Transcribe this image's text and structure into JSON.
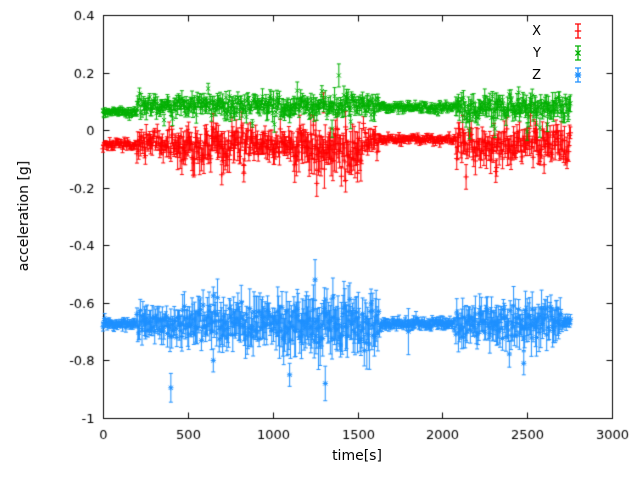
{
  "chart_data": {
    "type": "scatter",
    "style": "points-with-yerrorbars",
    "title": "",
    "xlabel": "time[s]",
    "ylabel": "acceleration [g]",
    "xlim": [
      0,
      3000
    ],
    "ylim": [
      -1,
      0.4
    ],
    "xticks": [
      0,
      500,
      1000,
      1500,
      2000,
      2500,
      3000
    ],
    "yticks": [
      -1,
      -0.8,
      -0.6,
      -0.4,
      -0.2,
      0,
      0.2,
      0.4
    ],
    "grid": false,
    "legend_position": "top-right",
    "seed": 7,
    "sample_step_s": 5,
    "series": [
      {
        "name": "X",
        "color": "#ff0000",
        "marker": "plus",
        "segments": [
          {
            "x0": 0,
            "x1": 200,
            "base": -0.05,
            "noise": 0.01,
            "err": 0.01
          },
          {
            "x0": 200,
            "x1": 440,
            "base": -0.05,
            "noise": 0.03,
            "err": 0.025
          },
          {
            "x0": 440,
            "x1": 900,
            "base": -0.06,
            "noise": 0.045,
            "err": 0.04
          },
          {
            "x0": 900,
            "x1": 1120,
            "base": -0.05,
            "noise": 0.03,
            "err": 0.03
          },
          {
            "x0": 1120,
            "x1": 1530,
            "base": -0.06,
            "noise": 0.055,
            "err": 0.05
          },
          {
            "x0": 1530,
            "x1": 1630,
            "base": -0.04,
            "noise": 0.025,
            "err": 0.025
          },
          {
            "x0": 1630,
            "x1": 2080,
            "base": -0.03,
            "noise": 0.01,
            "err": 0.01
          },
          {
            "x0": 2080,
            "x1": 2760,
            "base": -0.05,
            "noise": 0.04,
            "err": 0.035
          }
        ],
        "outliers": [
          {
            "x": 700,
            "y": -0.155,
            "err": 0.035
          },
          {
            "x": 830,
            "y": -0.15,
            "err": 0.03
          },
          {
            "x": 1260,
            "y": -0.185,
            "err": 0.045
          },
          {
            "x": 1300,
            "y": 0.095,
            "err": 0.035
          },
          {
            "x": 1430,
            "y": -0.175,
            "err": 0.04
          },
          {
            "x": 1500,
            "y": -0.15,
            "err": 0.03
          },
          {
            "x": 2320,
            "y": -0.13,
            "err": 0.03
          },
          {
            "x": 2600,
            "y": -0.12,
            "err": 0.03
          }
        ]
      },
      {
        "name": "Y",
        "color": "#00b000",
        "marker": "cross",
        "segments": [
          {
            "x0": 0,
            "x1": 200,
            "base": 0.065,
            "noise": 0.008,
            "err": 0.01
          },
          {
            "x0": 200,
            "x1": 460,
            "base": 0.085,
            "noise": 0.02,
            "err": 0.02
          },
          {
            "x0": 460,
            "x1": 1630,
            "base": 0.085,
            "noise": 0.025,
            "err": 0.022
          },
          {
            "x0": 1630,
            "x1": 2080,
            "base": 0.08,
            "noise": 0.01,
            "err": 0.01
          },
          {
            "x0": 2080,
            "x1": 2760,
            "base": 0.08,
            "noise": 0.028,
            "err": 0.025
          }
        ],
        "outliers": [
          {
            "x": 360,
            "y": 0.035,
            "err": 0.02
          },
          {
            "x": 1350,
            "y": 0.005,
            "err": 0.03
          },
          {
            "x": 1390,
            "y": 0.19,
            "err": 0.04
          },
          {
            "x": 1460,
            "y": 0.03,
            "err": 0.025
          },
          {
            "x": 2160,
            "y": 0.0,
            "err": 0.03
          },
          {
            "x": 2310,
            "y": 0.005,
            "err": 0.03
          },
          {
            "x": 2450,
            "y": 0.13,
            "err": 0.02
          },
          {
            "x": 2500,
            "y": -0.005,
            "err": 0.03
          },
          {
            "x": 2620,
            "y": 0.02,
            "err": 0.025
          }
        ]
      },
      {
        "name": "Z",
        "color": "#1e90ff",
        "marker": "star",
        "segments": [
          {
            "x0": 0,
            "x1": 200,
            "base": -0.672,
            "noise": 0.01,
            "err": 0.012
          },
          {
            "x0": 200,
            "x1": 460,
            "base": -0.67,
            "noise": 0.032,
            "err": 0.038
          },
          {
            "x0": 460,
            "x1": 1020,
            "base": -0.67,
            "noise": 0.045,
            "err": 0.05
          },
          {
            "x0": 1020,
            "x1": 1630,
            "base": -0.68,
            "noise": 0.055,
            "err": 0.065
          },
          {
            "x0": 1630,
            "x1": 2080,
            "base": -0.672,
            "noise": 0.01,
            "err": 0.015
          },
          {
            "x0": 2080,
            "x1": 2700,
            "base": -0.67,
            "noise": 0.042,
            "err": 0.048
          },
          {
            "x0": 2700,
            "x1": 2760,
            "base": -0.67,
            "noise": 0.015,
            "err": 0.018
          }
        ],
        "outliers": [
          {
            "x": 400,
            "y": -0.895,
            "err": 0.05
          },
          {
            "x": 650,
            "y": -0.8,
            "err": 0.04
          },
          {
            "x": 1100,
            "y": -0.85,
            "err": 0.04
          },
          {
            "x": 1250,
            "y": -0.52,
            "err": 0.07
          },
          {
            "x": 1310,
            "y": -0.88,
            "err": 0.06
          },
          {
            "x": 1800,
            "y": -0.7,
            "err": 0.08
          },
          {
            "x": 2480,
            "y": -0.81,
            "err": 0.04
          }
        ]
      }
    ]
  },
  "colors": {
    "frame": "#000000",
    "text": "#000000",
    "background": "#ffffff"
  }
}
